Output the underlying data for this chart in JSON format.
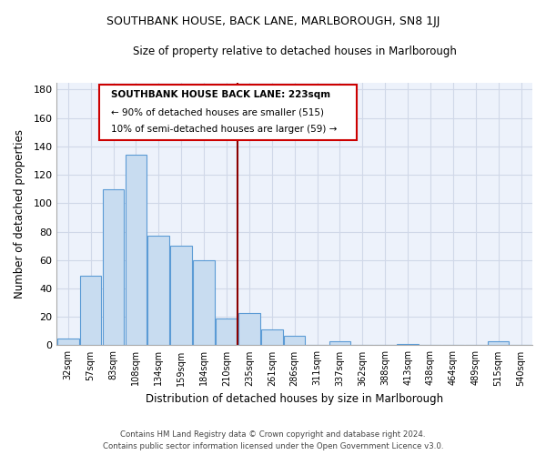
{
  "title": "SOUTHBANK HOUSE, BACK LANE, MARLBOROUGH, SN8 1JJ",
  "subtitle": "Size of property relative to detached houses in Marlborough",
  "xlabel": "Distribution of detached houses by size in Marlborough",
  "ylabel": "Number of detached properties",
  "bar_labels": [
    "32sqm",
    "57sqm",
    "83sqm",
    "108sqm",
    "134sqm",
    "159sqm",
    "184sqm",
    "210sqm",
    "235sqm",
    "261sqm",
    "286sqm",
    "311sqm",
    "337sqm",
    "362sqm",
    "388sqm",
    "413sqm",
    "438sqm",
    "464sqm",
    "489sqm",
    "515sqm",
    "540sqm"
  ],
  "bar_values": [
    5,
    49,
    110,
    134,
    77,
    70,
    60,
    19,
    23,
    11,
    7,
    0,
    3,
    0,
    0,
    1,
    0,
    0,
    0,
    3,
    0
  ],
  "bar_color": "#c8dcf0",
  "bar_edge_color": "#5b9bd5",
  "vline_x": 7.5,
  "vline_color": "#8b0000",
  "annotation_title": "SOUTHBANK HOUSE BACK LANE: 223sqm",
  "annotation_line1": "← 90% of detached houses are smaller (515)",
  "annotation_line2": "10% of semi-detached houses are larger (59) →",
  "ylim": [
    0,
    185
  ],
  "yticks": [
    0,
    20,
    40,
    60,
    80,
    100,
    120,
    140,
    160,
    180
  ],
  "footer_line1": "Contains HM Land Registry data © Crown copyright and database right 2024.",
  "footer_line2": "Contains public sector information licensed under the Open Government Licence v3.0.",
  "background_color": "#edf2fb",
  "grid_color": "#d0d8e8"
}
